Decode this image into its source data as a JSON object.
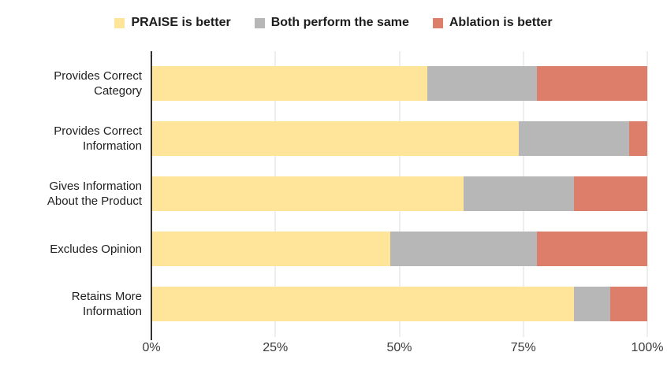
{
  "page": {
    "background": "#ffffff"
  },
  "chart_data": {
    "type": "bar",
    "orientation": "horizontal",
    "stacked": true,
    "stacking": "percent",
    "title": "",
    "xlabel": "",
    "ylabel": "",
    "xlim": [
      0,
      100
    ],
    "x_tick_labels": [
      "0%",
      "25%",
      "50%",
      "75%",
      "100%"
    ],
    "grid": "vertical-only",
    "legend_position": "top-center",
    "categories": [
      "Provides Correct Category",
      "Provides Correct Information",
      "Gives Information About the Product",
      "Excludes Opinion",
      "Retains More Information"
    ],
    "category_label_lines": [
      [
        "Provides Correct",
        "Category"
      ],
      [
        "Provides Correct",
        "Information"
      ],
      [
        "Gives Information",
        "About the Product"
      ],
      [
        "Excludes Opinion"
      ],
      [
        "Retains More",
        "Information"
      ]
    ],
    "series": [
      {
        "name": "PRAISE is better",
        "color": "#ffe599",
        "values": [
          55.6,
          74.1,
          63.0,
          48.1,
          85.2
        ]
      },
      {
        "name": "Both perform the same",
        "color": "#b7b7b7",
        "values": [
          22.2,
          22.2,
          22.2,
          29.6,
          7.4
        ]
      },
      {
        "name": "Ablation is better",
        "color": "#dd7e6b",
        "values": [
          22.2,
          3.7,
          14.8,
          22.2,
          7.4
        ]
      }
    ],
    "colors": {
      "axis_line": "#333333",
      "gridline": "#dcdcdc",
      "category_text": "#212121",
      "tick_text": "#3a3a3a",
      "legend_text": "#1c1c1c"
    }
  }
}
